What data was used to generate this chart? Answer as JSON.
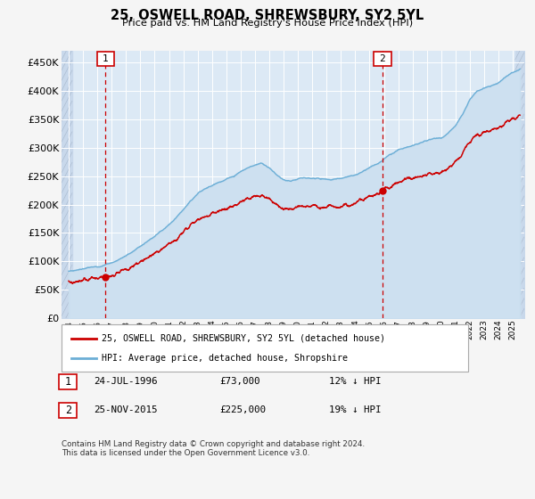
{
  "title": "25, OSWELL ROAD, SHREWSBURY, SY2 5YL",
  "subtitle": "Price paid vs. HM Land Registry's House Price Index (HPI)",
  "legend_line1": "25, OSWELL ROAD, SHREWSBURY, SY2 5YL (detached house)",
  "legend_line2": "HPI: Average price, detached house, Shropshire",
  "sale1_date": "24-JUL-1996",
  "sale1_price": 73000,
  "sale1_hpi_diff": "12% ↓ HPI",
  "sale2_date": "25-NOV-2015",
  "sale2_price": 225000,
  "sale2_hpi_diff": "19% ↓ HPI",
  "footnote": "Contains HM Land Registry data © Crown copyright and database right 2024.\nThis data is licensed under the Open Government Licence v3.0.",
  "hpi_color": "#6baed6",
  "price_color": "#cc0000",
  "bg_color": "#dce9f5",
  "grid_color": "#ffffff",
  "ylim": [
    0,
    470000
  ],
  "yticks": [
    0,
    50000,
    100000,
    150000,
    200000,
    250000,
    300000,
    350000,
    400000,
    450000
  ],
  "sale1_year": 1996.56,
  "sale2_year": 2015.9,
  "xmin": 1993.5,
  "xmax": 2025.8
}
